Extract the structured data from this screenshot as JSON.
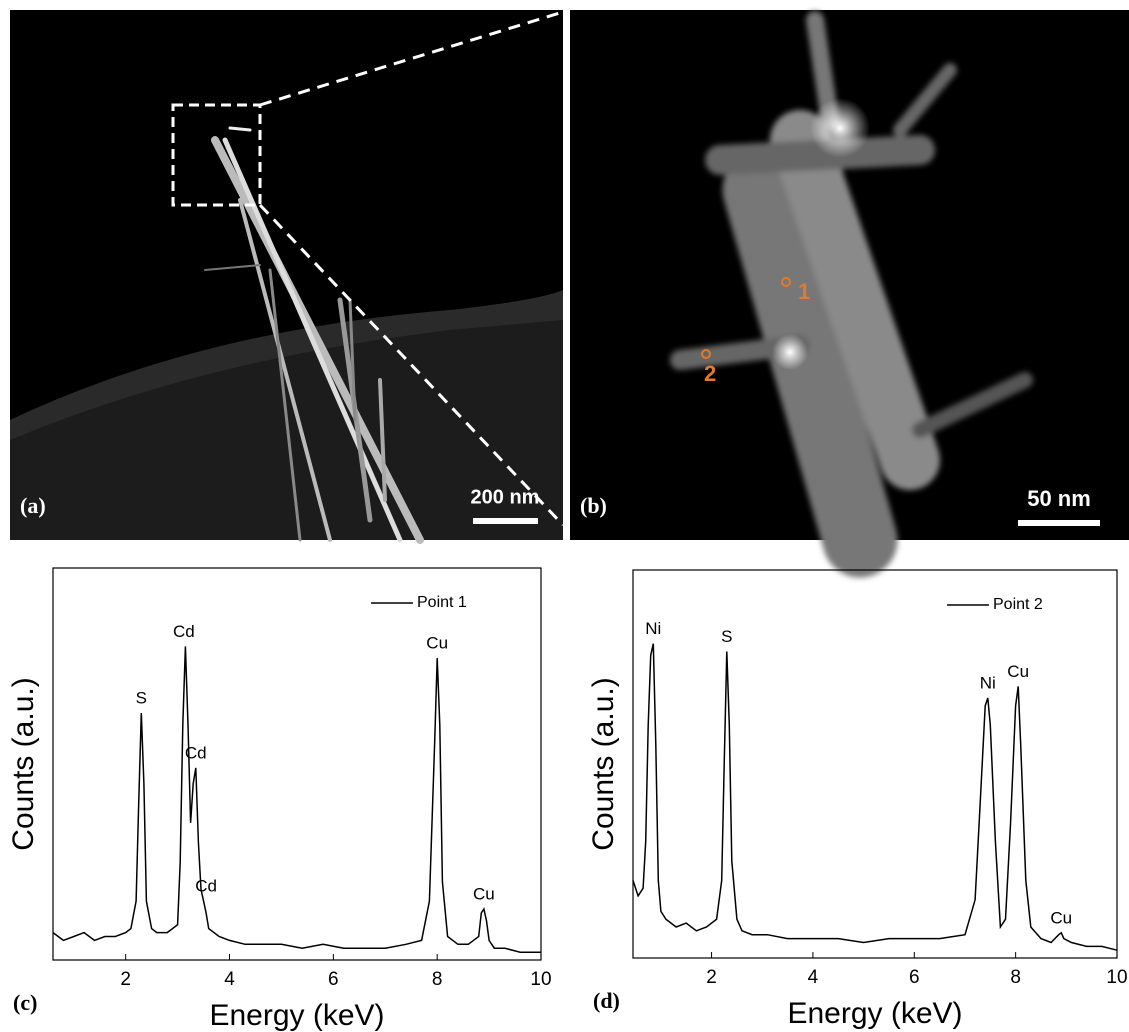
{
  "images": [
    {
      "label": "(a)",
      "scale_bar": "200 nm"
    },
    {
      "label": "(b)",
      "scale_bar": "50 nm",
      "points": [
        "1",
        "2"
      ]
    }
  ],
  "chart_data": [
    {
      "type": "line",
      "panel_label": "(c)",
      "x_label": "Energy (keV)",
      "y_label": "Counts (a.u.)",
      "x": [
        0.6,
        0.8,
        1.0,
        1.2,
        1.4,
        1.6,
        1.8,
        2.0,
        2.1,
        2.2,
        2.25,
        2.3,
        2.35,
        2.4,
        2.5,
        2.6,
        2.8,
        3.0,
        3.05,
        3.1,
        3.15,
        3.2,
        3.25,
        3.3,
        3.35,
        3.4,
        3.45,
        3.5,
        3.55,
        3.6,
        3.8,
        4.0,
        4.3,
        4.6,
        5.0,
        5.4,
        5.8,
        6.2,
        6.6,
        7.0,
        7.4,
        7.7,
        7.85,
        7.95,
        8.0,
        8.05,
        8.1,
        8.2,
        8.4,
        8.6,
        8.8,
        8.85,
        8.9,
        8.95,
        9.0,
        9.1,
        9.3,
        9.6,
        10.0
      ],
      "series": [
        {
          "name": "Point 1",
          "color": "#000000",
          "values": [
            7,
            5,
            6,
            7,
            5,
            6,
            6,
            7,
            8,
            15,
            40,
            63,
            45,
            15,
            8,
            7,
            7,
            9,
            25,
            60,
            80,
            60,
            35,
            45,
            49,
            30,
            18,
            15,
            12,
            8,
            6,
            5,
            4,
            4,
            4,
            3,
            4,
            3,
            3,
            3,
            4,
            5,
            15,
            55,
            77,
            60,
            20,
            6,
            4,
            4,
            6,
            12,
            13,
            10,
            5,
            3,
            3,
            2,
            2
          ]
        }
      ],
      "annotations": [
        {
          "text": "S",
          "x": 2.3,
          "y": 63
        },
        {
          "text": "Cd",
          "x": 3.12,
          "y": 80
        },
        {
          "text": "Cd",
          "x": 3.35,
          "y": 49
        },
        {
          "text": "Cd",
          "x": 3.55,
          "y": 15
        },
        {
          "text": "Cu",
          "x": 8.0,
          "y": 77
        },
        {
          "text": "Cu",
          "x": 8.9,
          "y": 13
        }
      ],
      "xlim": [
        0.6,
        10
      ],
      "ylim": [
        0,
        100
      ],
      "xticks": [
        2,
        4,
        6,
        8,
        10
      ],
      "grid": false,
      "legend": "upper right"
    },
    {
      "type": "line",
      "panel_label": "(d)",
      "x_label": "Energy (keV)",
      "y_label": "Counts (a.u.)",
      "x": [
        0.45,
        0.55,
        0.65,
        0.7,
        0.75,
        0.8,
        0.85,
        0.9,
        0.95,
        1.0,
        1.1,
        1.3,
        1.5,
        1.7,
        1.9,
        2.1,
        2.2,
        2.25,
        2.3,
        2.35,
        2.4,
        2.5,
        2.6,
        2.8,
        3.1,
        3.5,
        4.0,
        4.5,
        5.0,
        5.5,
        6.0,
        6.5,
        7.0,
        7.2,
        7.3,
        7.4,
        7.45,
        7.5,
        7.6,
        7.7,
        7.8,
        7.9,
        8.0,
        8.05,
        8.1,
        8.2,
        8.3,
        8.5,
        8.7,
        8.85,
        8.9,
        8.95,
        9.1,
        9.4,
        9.7,
        10.0
      ],
      "series": [
        {
          "name": "Point 2",
          "color": "#000000",
          "values": [
            20,
            16,
            18,
            30,
            60,
            78,
            81,
            55,
            20,
            12,
            10,
            8,
            9,
            7,
            8,
            10,
            20,
            50,
            79,
            60,
            25,
            10,
            7,
            6,
            6,
            5,
            5,
            5,
            4,
            5,
            5,
            5,
            6,
            15,
            40,
            65,
            67,
            60,
            30,
            8,
            10,
            35,
            65,
            70,
            55,
            20,
            8,
            5,
            4,
            6,
            6.5,
            5,
            4,
            3,
            3,
            2
          ]
        }
      ],
      "annotations": [
        {
          "text": "Ni",
          "x": 0.85,
          "y": 81
        },
        {
          "text": "S",
          "x": 2.3,
          "y": 79
        },
        {
          "text": "Ni",
          "x": 7.45,
          "y": 67
        },
        {
          "text": "Cu",
          "x": 8.05,
          "y": 70
        },
        {
          "text": "Cu",
          "x": 8.9,
          "y": 6.5
        }
      ],
      "xlim": [
        0.45,
        10
      ],
      "ylim": [
        0,
        100
      ],
      "xticks": [
        2,
        4,
        6,
        8,
        10
      ],
      "grid": false,
      "legend": "upper right"
    }
  ]
}
